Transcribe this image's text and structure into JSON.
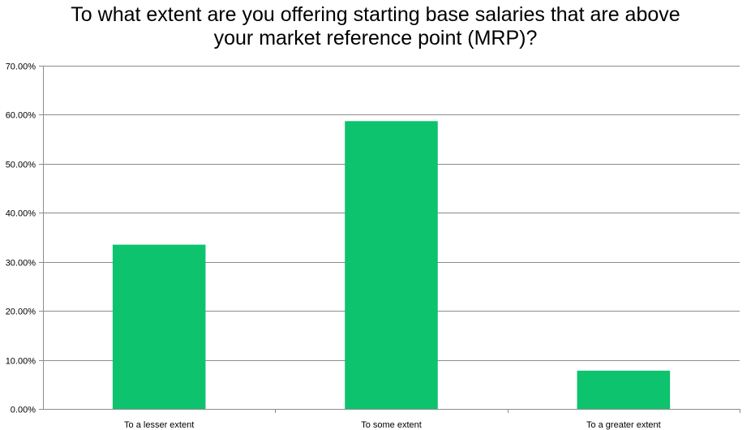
{
  "chart_data": {
    "type": "bar",
    "title_lines": [
      "To what extent are you offering starting base salaries that are above",
      "your market reference point (MRP)?"
    ],
    "categories": [
      "To a lesser extent",
      "To some extent",
      "To a greater extent"
    ],
    "values": [
      33.5,
      58.7,
      7.8
    ],
    "ylim": [
      0,
      70
    ],
    "yticks": [
      "0.00%",
      "10.00%",
      "20.00%",
      "30.00%",
      "40.00%",
      "50.00%",
      "60.00%",
      "70.00%"
    ],
    "xlabel": "",
    "ylabel": "",
    "grid": true,
    "legend": "none",
    "bar_color": "#0DC36E",
    "gridline_color": "#8C8C8C"
  }
}
